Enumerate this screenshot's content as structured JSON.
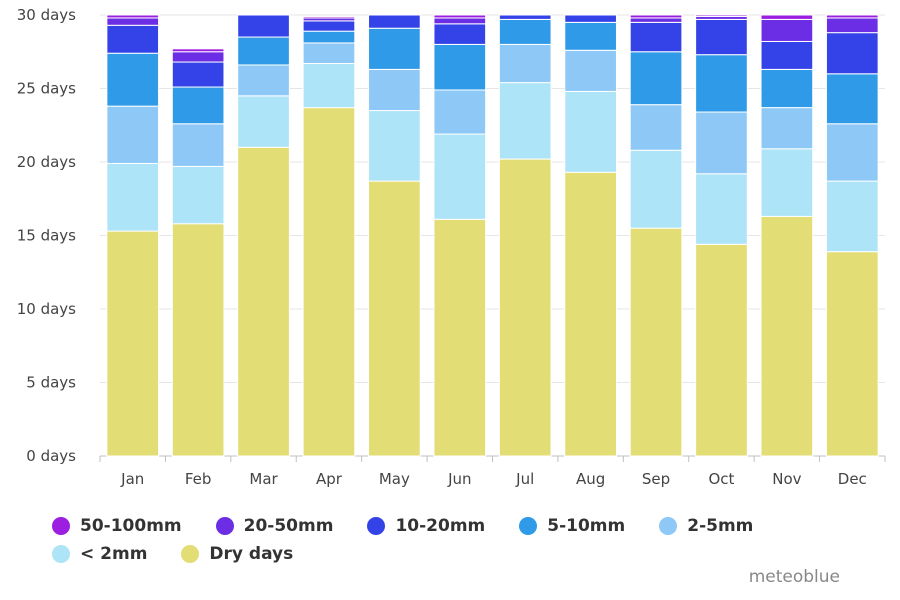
{
  "chart_data": {
    "type": "bar",
    "stacked": true,
    "categories": [
      "Jan",
      "Feb",
      "Mar",
      "Apr",
      "May",
      "Jun",
      "Jul",
      "Aug",
      "Sep",
      "Oct",
      "Nov",
      "Dec"
    ],
    "ylim": [
      0,
      30
    ],
    "yticks": [
      "0 days",
      "5 days",
      "10 days",
      "15 days",
      "20 days",
      "25 days",
      "30 days"
    ],
    "ytick_values": [
      0,
      5,
      10,
      15,
      20,
      25,
      30
    ],
    "grid": true,
    "legend_position": "bottom-left",
    "series": [
      {
        "name": "Dry days",
        "color": "#e3dd75",
        "values": [
          15.3,
          15.8,
          21.0,
          23.7,
          18.7,
          16.1,
          20.2,
          19.3,
          15.5,
          14.4,
          16.3,
          13.9
        ]
      },
      {
        "name": "< 2mm",
        "color": "#ade4f7",
        "values": [
          4.6,
          3.9,
          3.5,
          3.0,
          4.8,
          5.8,
          5.2,
          5.5,
          5.3,
          4.8,
          4.6,
          4.8
        ]
      },
      {
        "name": "2-5mm",
        "color": "#8ec8f7",
        "values": [
          3.9,
          2.9,
          2.1,
          1.4,
          2.8,
          3.0,
          2.6,
          2.8,
          3.1,
          4.2,
          2.8,
          3.9
        ]
      },
      {
        "name": "5-10mm",
        "color": "#2f9ae8",
        "values": [
          3.6,
          2.5,
          1.9,
          0.8,
          2.8,
          3.1,
          1.7,
          1.9,
          3.6,
          3.9,
          2.6,
          3.4
        ]
      },
      {
        "name": "10-20mm",
        "color": "#3443e8",
        "values": [
          1.9,
          1.7,
          1.5,
          0.7,
          0.9,
          1.4,
          0.3,
          0.5,
          2.0,
          2.4,
          1.9,
          2.8
        ]
      },
      {
        "name": "20-50mm",
        "color": "#6c2ee4",
        "values": [
          0.5,
          0.7,
          0.0,
          0.2,
          0.0,
          0.4,
          0.0,
          0.0,
          0.3,
          0.2,
          1.5,
          1.0
        ]
      },
      {
        "name": "50-100mm",
        "color": "#9c1ee0",
        "values": [
          0.2,
          0.2,
          0.0,
          0.1,
          0.0,
          0.2,
          0.0,
          0.0,
          0.2,
          0.1,
          0.3,
          0.2
        ]
      }
    ],
    "legend_order": [
      "50-100mm",
      "20-50mm",
      "10-20mm",
      "5-10mm",
      "2-5mm",
      "< 2mm",
      "Dry days"
    ]
  },
  "legend_labels": {
    "l50_100": "50-100mm",
    "l20_50": "20-50mm",
    "l10_20": "10-20mm",
    "l5_10": "5-10mm",
    "l2_5": "2-5mm",
    "llt2": "< 2mm",
    "ldry": "Dry days"
  },
  "credit": "meteoblue"
}
